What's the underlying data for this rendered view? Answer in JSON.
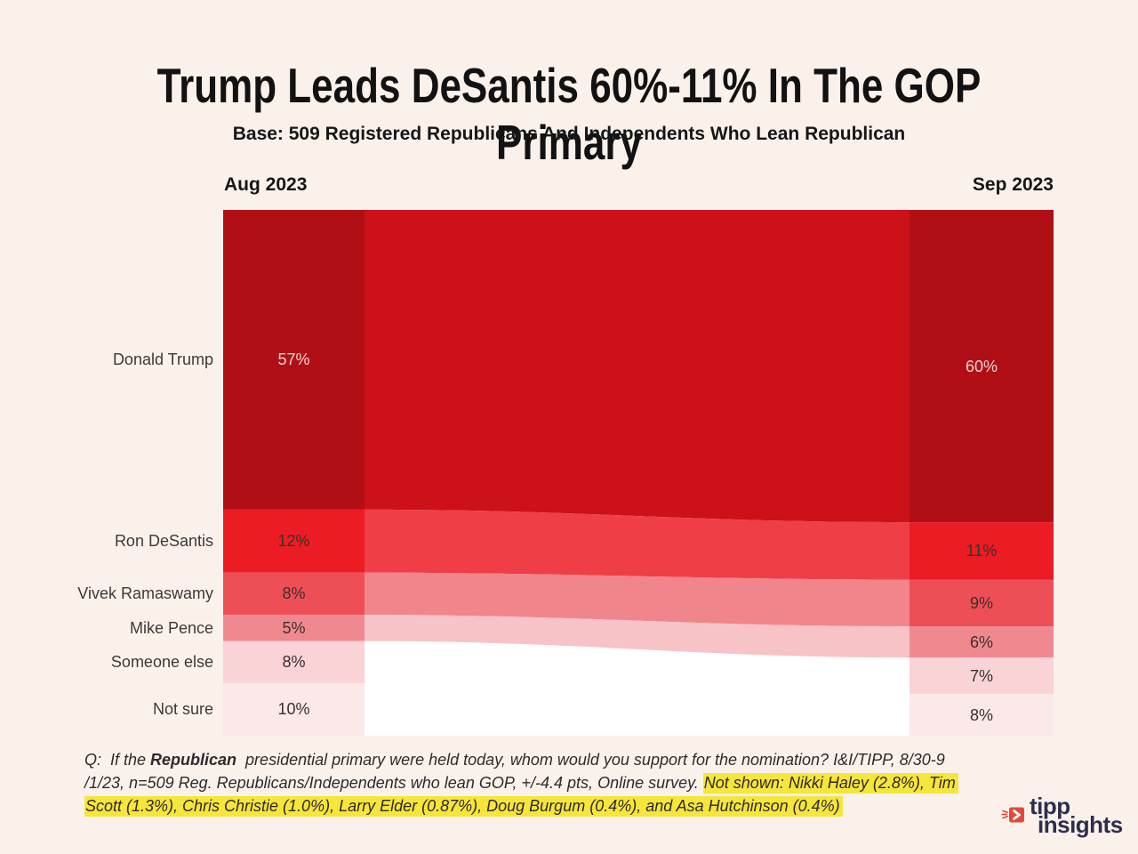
{
  "page": {
    "background": "#FAF1EA"
  },
  "header": {
    "title": "Trump Leads DeSantis 60%-11% In The GOP Primary",
    "subtitle": "Base: 509 Registered Republicans And Independents Who Lean Republican"
  },
  "chart_data": {
    "type": "slope-ribbon",
    "title": "Trump Leads DeSantis 60%-11% In The GOP Primary",
    "subtitle": "Base: 509 Registered Republicans And Independents Who Lean Republican",
    "left_header": "Aug 2023",
    "right_header": "Sep 2023",
    "categories": [
      "Donald Trump",
      "Ron DeSantis",
      "Vivek Ramaswamy",
      "Mike Pence",
      "Someone else",
      "Not sure"
    ],
    "series": [
      {
        "name": "Aug 2023",
        "values": [
          57,
          12,
          8,
          5,
          8,
          10
        ]
      },
      {
        "name": "Sep 2023",
        "values": [
          60,
          11,
          9,
          6,
          7,
          8
        ]
      }
    ],
    "unit": "%",
    "plot_background": "#FFFFFF",
    "column_colors": [
      "#B01015",
      "#EC1C24",
      "#EE4F57",
      "#F0898F",
      "#F9D3D6",
      "#FBE8E9"
    ],
    "ribbon_colors": [
      "#CC1119",
      "#EF3E46",
      "#F0858B",
      "#F7C3C7",
      null,
      null
    ],
    "value_text_colors": [
      "#F3D3D5",
      "#3B2F30",
      "#3B2F30",
      "#3B2F30",
      "#3B2F30",
      "#3B2F30"
    ],
    "legend_position": "none",
    "grid": false
  },
  "footer": {
    "q_prefix": "Q:  If the ",
    "q_bold": "Republican",
    "line1_rest": "  presidential primary were held today, whom would you support for the nomination? I&I/TIPP, 8/30-9",
    "line2_plain": "/1/23, n=509 Reg. Republicans/Independents who lean GOP, +/-4.4 pts, Online survey. ",
    "line2_highlight": "Not shown: Nikki Haley (2.8%), Tim",
    "line3_highlight": "Scott (1.3%), Chris Christie (1.0%), Larry Elder (0.87%), Doug Burgum (0.4%), and Asa Hutchinson (0.4%)",
    "highlight_color": "#F6E53B"
  },
  "logo": {
    "line1": "tipp",
    "line2": "insights",
    "icon_color": "#E2493B",
    "text_color": "#2F2D4E"
  }
}
